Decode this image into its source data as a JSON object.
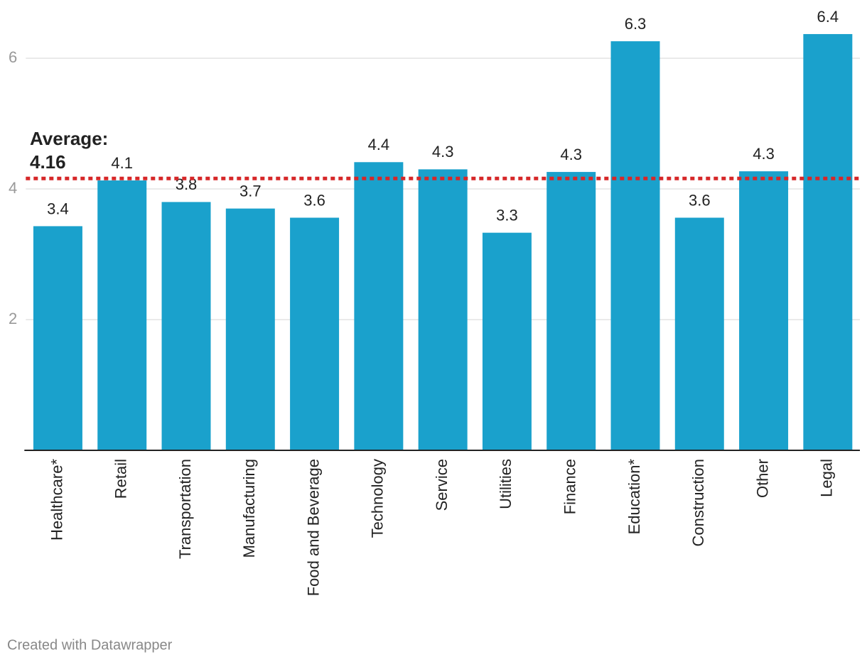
{
  "chart_data": {
    "type": "bar",
    "categories": [
      "Healthcare*",
      "Retail",
      "Transportation",
      "Manufacturing",
      "Food and Beverage",
      "Technology",
      "Service",
      "Utilities",
      "Finance",
      "Education*",
      "Construction",
      "Other",
      "Legal"
    ],
    "values": [
      3.43,
      4.13,
      3.8,
      3.7,
      3.56,
      4.41,
      4.3,
      3.33,
      4.26,
      6.26,
      3.56,
      4.27,
      6.37
    ],
    "value_labels": [
      "3.4",
      "4.1",
      "3.8",
      "3.7",
      "3.6",
      "4.4",
      "4.3",
      "3.3",
      "4.3",
      "6.3",
      "3.6",
      "4.3",
      "6.4"
    ],
    "color": "#1aa1cc",
    "ylim": [
      0,
      6.5
    ],
    "yticks": [
      2,
      4,
      6
    ],
    "grid": true,
    "average": {
      "label": "Average:",
      "value": 4.16,
      "color": "#d62728"
    },
    "footer": "Created with Datawrapper"
  }
}
